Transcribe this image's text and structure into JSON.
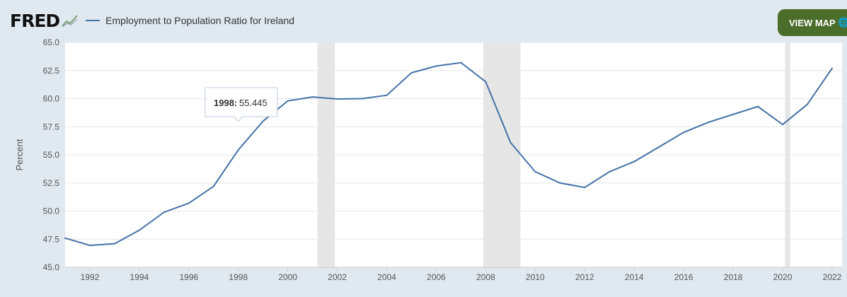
{
  "header": {
    "logo": "FRED",
    "legend": "Employment to Population Ratio for Ireland",
    "view_map": "VIEW MAP"
  },
  "colors": {
    "line": "#4572a7",
    "button": "#4b6d2a",
    "recession": "#e6e6e6"
  },
  "tooltip": {
    "year": "1998:",
    "value": "55.445"
  },
  "chart_data": {
    "type": "line",
    "title": "Employment to Population Ratio for Ireland",
    "xlabel": "",
    "ylabel": "Percent",
    "ylim": [
      45,
      65
    ],
    "xlim": [
      1991,
      2022.4
    ],
    "yticks": [
      "45.0",
      "47.5",
      "50.0",
      "52.5",
      "55.0",
      "57.5",
      "60.0",
      "62.5",
      "65.0"
    ],
    "xticks": [
      "1992",
      "1994",
      "1996",
      "1998",
      "2000",
      "2002",
      "2004",
      "2006",
      "2008",
      "2010",
      "2012",
      "2014",
      "2016",
      "2018",
      "2020",
      "2022"
    ],
    "x": [
      1991,
      1992,
      1993,
      1994,
      1995,
      1996,
      1997,
      1998,
      1999,
      2000,
      2001,
      2002,
      2003,
      2004,
      2005,
      2006,
      2007,
      2008,
      2009,
      2010,
      2011,
      2012,
      2013,
      2014,
      2015,
      2016,
      2017,
      2018,
      2019,
      2020,
      2021,
      2022
    ],
    "series": [
      {
        "name": "Employment to Population Ratio for Ireland",
        "values": [
          47.6,
          46.95,
          47.1,
          48.3,
          49.9,
          50.7,
          52.2,
          55.445,
          58.0,
          59.8,
          60.15,
          59.97,
          60.0,
          60.3,
          62.3,
          62.9,
          63.2,
          61.5,
          56.1,
          53.5,
          52.5,
          52.1,
          53.5,
          54.4,
          55.7,
          57.0,
          57.9,
          58.6,
          59.3,
          57.7,
          59.5,
          62.7
        ]
      }
    ],
    "recessions": [
      [
        2001.2,
        2001.9
      ],
      [
        2007.9,
        2009.4
      ],
      [
        2020.1,
        2020.3
      ]
    ],
    "grid": true
  }
}
